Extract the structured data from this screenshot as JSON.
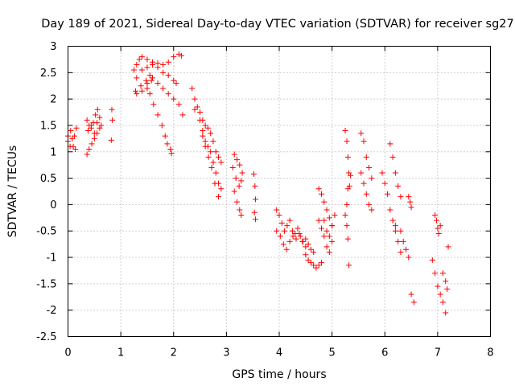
{
  "chart_data": {
    "type": "scatter",
    "title": "Day 189 of 2021, Sidereal Day-to-day VTEC variation (SDTVAR) for receiver sg27",
    "xlabel": "GPS time / hours",
    "ylabel": "SDTVAR / TECUs",
    "xlim": [
      0,
      8
    ],
    "ylim": [
      -2.5,
      3
    ],
    "grid": true,
    "marker": "plus",
    "xticks": [
      0,
      1,
      2,
      3,
      4,
      5,
      6,
      7,
      8
    ],
    "xtick_labels": [
      "0",
      "1",
      "2",
      "3",
      "4",
      "5",
      "6",
      "7",
      "8"
    ],
    "yticks": [
      -2.5,
      -2,
      -1.5,
      -1,
      -0.5,
      0,
      0.5,
      1,
      1.5,
      2,
      2.5,
      3
    ],
    "ytick_labels": [
      "-2.5",
      "-2",
      "-1.5",
      "-1",
      "-0.5",
      "0",
      "0.5",
      "1",
      "1.5",
      "2",
      "2.5",
      "3"
    ],
    "color": "#ff0000",
    "series": [
      {
        "name": "s1",
        "x": [
          0.0,
          0.04,
          0.08,
          0.12,
          0.16
        ],
        "y": [
          1.2,
          1.1,
          1.25,
          1.3,
          1.45
        ]
      },
      {
        "name": "s2",
        "x": [
          0.0,
          0.05,
          0.1,
          0.14
        ],
        "y": [
          1.3,
          1.4,
          1.1,
          1.05
        ]
      },
      {
        "name": "s3",
        "x": [
          0.36,
          0.4,
          0.44,
          0.48,
          0.52,
          0.56
        ],
        "y": [
          1.6,
          1.5,
          1.45,
          1.55,
          1.7,
          1.8
        ]
      },
      {
        "name": "s4",
        "x": [
          0.36,
          0.4,
          0.45,
          0.5,
          0.55,
          0.6,
          0.63
        ],
        "y": [
          0.95,
          1.05,
          1.15,
          1.25,
          1.35,
          1.45,
          1.5
        ]
      },
      {
        "name": "s5",
        "x": [
          0.38,
          0.44,
          0.5,
          0.55,
          0.6
        ],
        "y": [
          1.4,
          1.5,
          1.35,
          1.55,
          1.65
        ]
      },
      {
        "name": "s6",
        "x": [
          0.83,
          0.84,
          0.82
        ],
        "y": [
          1.8,
          1.6,
          1.22
        ]
      },
      {
        "name": "s7",
        "x": [
          1.25,
          1.3,
          1.35,
          1.4,
          1.5,
          1.6,
          1.7,
          1.8,
          1.9,
          2.0,
          2.1,
          2.15
        ],
        "y": [
          2.55,
          2.65,
          2.75,
          2.8,
          2.75,
          2.7,
          2.68,
          2.65,
          2.7,
          2.8,
          2.85,
          2.82
        ]
      },
      {
        "name": "s8",
        "x": [
          1.3,
          1.4,
          1.5,
          1.6,
          1.7,
          1.8,
          1.9,
          2.0,
          2.05
        ],
        "y": [
          2.4,
          2.55,
          2.6,
          2.65,
          2.6,
          2.5,
          2.45,
          2.35,
          2.3
        ]
      },
      {
        "name": "s9",
        "x": [
          1.28,
          1.38,
          1.48,
          1.55,
          1.6,
          1.7,
          1.8,
          1.9,
          2.0,
          2.1,
          2.17
        ],
        "y": [
          2.15,
          2.25,
          2.35,
          2.45,
          2.4,
          2.3,
          2.2,
          2.1,
          2.0,
          1.9,
          1.7
        ]
      },
      {
        "name": "s10",
        "x": [
          1.5,
          1.55,
          1.62,
          1.7,
          1.78,
          1.84,
          1.88,
          1.94,
          1.96
        ],
        "y": [
          2.3,
          2.1,
          1.9,
          1.7,
          1.5,
          1.3,
          1.15,
          1.05,
          0.97
        ]
      },
      {
        "name": "s11",
        "x": [
          1.3,
          1.4,
          1.5,
          1.58
        ],
        "y": [
          2.1,
          2.15,
          2.2,
          2.35
        ]
      },
      {
        "name": "s12",
        "x": [
          2.35,
          2.4,
          2.45,
          2.5,
          2.55,
          2.6,
          2.65,
          2.7,
          2.75,
          2.8,
          2.85,
          2.9
        ],
        "y": [
          2.2,
          2.0,
          1.85,
          1.75,
          1.6,
          1.5,
          1.45,
          1.35,
          1.2,
          1.0,
          0.9,
          0.8
        ]
      },
      {
        "name": "s13",
        "x": [
          2.4,
          2.5,
          2.55,
          2.6,
          2.65,
          2.7,
          2.75,
          2.8,
          2.85,
          2.9
        ],
        "y": [
          1.8,
          1.6,
          1.4,
          1.2,
          1.1,
          1.0,
          0.8,
          0.6,
          0.4,
          0.3
        ]
      },
      {
        "name": "s14",
        "x": [
          2.55,
          2.6,
          2.66,
          2.72,
          2.78,
          2.85
        ],
        "y": [
          1.3,
          1.1,
          0.9,
          0.7,
          0.4,
          0.15
        ]
      },
      {
        "name": "s15",
        "x": [
          3.15,
          3.2,
          3.25,
          3.3
        ],
        "y": [
          0.95,
          0.85,
          0.75,
          0.6
        ]
      },
      {
        "name": "s16",
        "x": [
          3.12,
          3.18,
          3.24,
          3.28
        ],
        "y": [
          0.7,
          0.5,
          0.35,
          0.45
        ]
      },
      {
        "name": "s17",
        "x": [
          3.15,
          3.2,
          3.25,
          3.28
        ],
        "y": [
          0.25,
          0.05,
          -0.1,
          -0.2
        ]
      },
      {
        "name": "s18",
        "x": [
          3.52,
          3.54,
          3.55,
          3.53,
          3.55
        ],
        "y": [
          0.58,
          0.35,
          0.1,
          -0.15,
          -0.28
        ]
      },
      {
        "name": "s19",
        "x": [
          3.95,
          4.0,
          4.05,
          4.1,
          4.15,
          4.2,
          4.25,
          4.3,
          4.35,
          4.4,
          4.45,
          4.5,
          4.55,
          4.6,
          4.65
        ],
        "y": [
          -0.1,
          -0.2,
          -0.35,
          -0.5,
          -0.4,
          -0.3,
          -0.5,
          -0.55,
          -0.45,
          -0.6,
          -0.7,
          -0.65,
          -0.75,
          -0.85,
          -0.9
        ]
      },
      {
        "name": "s20",
        "x": [
          3.95,
          4.02,
          4.08,
          4.14,
          4.2,
          4.26,
          4.32,
          4.38,
          4.44,
          4.5
        ],
        "y": [
          -0.5,
          -0.6,
          -0.75,
          -0.85,
          -0.7,
          -0.6,
          -0.65,
          -0.55,
          -0.7,
          -0.8
        ]
      },
      {
        "name": "s21",
        "x": [
          4.5,
          4.55,
          4.6,
          4.65,
          4.7,
          4.75,
          4.8
        ],
        "y": [
          -0.95,
          -1.05,
          -1.1,
          -1.15,
          -1.2,
          -1.15,
          -1.1
        ]
      },
      {
        "name": "s22",
        "x": [
          4.75,
          4.8,
          4.85,
          4.9,
          4.95,
          5.0
        ],
        "y": [
          -0.3,
          -0.45,
          -0.6,
          -0.8,
          -0.9,
          -0.7
        ]
      },
      {
        "name": "s23",
        "x": [
          4.75,
          4.8,
          4.85,
          4.9,
          4.95,
          5.0
        ],
        "y": [
          0.3,
          0.2,
          0.05,
          -0.1,
          -0.25,
          -0.4
        ]
      },
      {
        "name": "s24",
        "x": [
          4.85,
          4.9,
          4.95,
          5.0,
          5.05
        ],
        "y": [
          -0.3,
          -0.5,
          -0.6,
          -0.4,
          -0.2
        ]
      },
      {
        "name": "s25",
        "x": [
          5.25,
          5.28,
          5.3,
          5.32,
          5.3,
          5.28
        ],
        "y": [
          1.4,
          1.2,
          0.9,
          0.6,
          0.3,
          0.0
        ]
      },
      {
        "name": "s26",
        "x": [
          5.25,
          5.28,
          5.3,
          5.32,
          5.33,
          5.35
        ],
        "y": [
          -0.2,
          -0.4,
          -0.65,
          -1.15,
          0.35,
          0.55
        ]
      },
      {
        "name": "s27",
        "x": [
          5.55,
          5.6,
          5.65,
          5.7,
          5.75
        ],
        "y": [
          1.35,
          1.2,
          0.9,
          0.7,
          0.5
        ]
      },
      {
        "name": "s28",
        "x": [
          5.55,
          5.6,
          5.65,
          5.7,
          5.75
        ],
        "y": [
          0.6,
          0.4,
          0.2,
          0.0,
          -0.1
        ]
      },
      {
        "name": "s29",
        "x": [
          5.95,
          6.0,
          6.05,
          6.1,
          6.15,
          6.2,
          6.25,
          6.3
        ],
        "y": [
          0.6,
          0.4,
          0.2,
          -0.1,
          -0.3,
          -0.5,
          -0.7,
          -0.9
        ]
      },
      {
        "name": "s30",
        "x": [
          6.1,
          6.15,
          6.2,
          6.25,
          6.3
        ],
        "y": [
          1.15,
          0.9,
          0.6,
          0.35,
          0.15
        ]
      },
      {
        "name": "s31",
        "x": [
          6.2,
          6.3,
          6.35,
          6.4,
          6.45,
          6.5,
          6.55
        ],
        "y": [
          -0.4,
          -0.5,
          -0.7,
          -0.85,
          -1.0,
          -1.7,
          -1.85
        ]
      },
      {
        "name": "s32",
        "x": [
          6.45,
          6.48,
          6.5
        ],
        "y": [
          0.15,
          0.05,
          -0.05
        ]
      },
      {
        "name": "s33",
        "x": [
          6.95,
          6.98,
          7.0,
          7.02,
          7.05
        ],
        "y": [
          -0.2,
          -0.3,
          -0.45,
          -0.55,
          -0.4
        ]
      },
      {
        "name": "s34",
        "x": [
          6.9,
          6.95,
          7.0,
          7.05,
          7.1,
          7.15
        ],
        "y": [
          -1.05,
          -1.3,
          -1.55,
          -1.7,
          -1.85,
          -2.05
        ]
      },
      {
        "name": "s35",
        "x": [
          7.1,
          7.15,
          7.18,
          7.2
        ],
        "y": [
          -1.3,
          -1.45,
          -1.6,
          -0.8
        ]
      }
    ]
  }
}
